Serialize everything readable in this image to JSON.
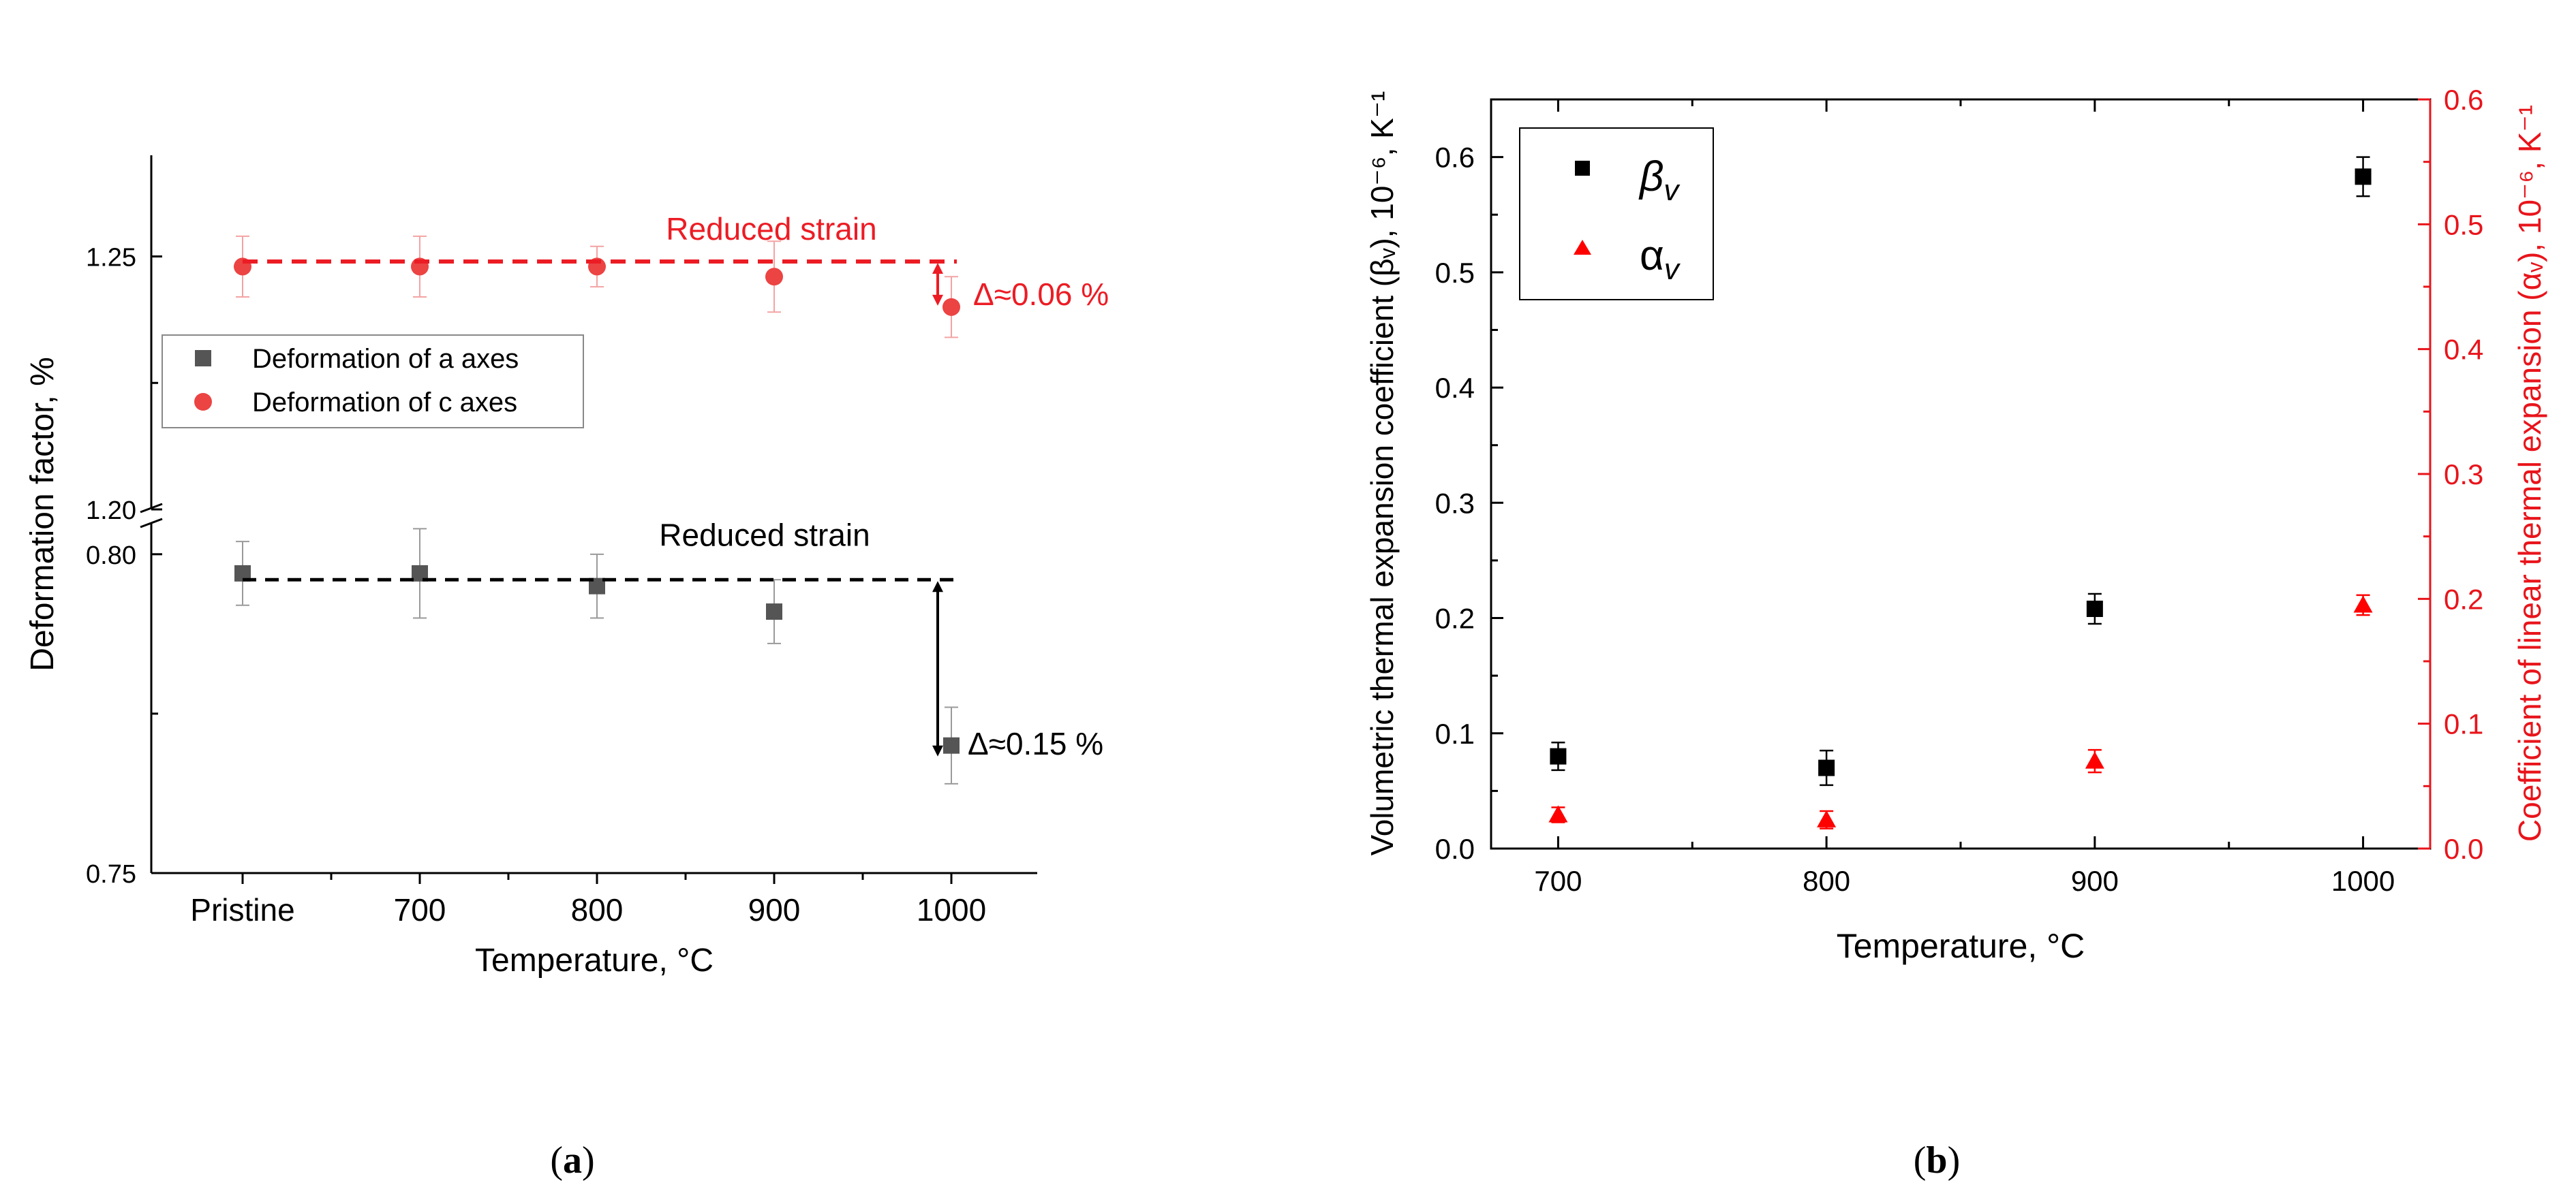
{
  "chart_data": [
    {
      "id": "a",
      "type": "scatter",
      "caption_letter": "a",
      "xlabel": "Temperature, °C",
      "ylabel": "Deformation factor, %",
      "categories": [
        "Pristine",
        "700",
        "800",
        "900",
        "1000"
      ],
      "ylim_lower": [
        0.75,
        0.805
      ],
      "ylim_upper": [
        1.2,
        1.27
      ],
      "yticks_lower": [
        "0.75",
        "0.80"
      ],
      "yticks_upper": [
        "1.20",
        "1.25"
      ],
      "series": [
        {
          "name": "Deformation of a axes",
          "color": "#555555",
          "marker": "square",
          "values": [
            0.797,
            0.797,
            0.795,
            0.791,
            0.77
          ],
          "errors": [
            0.005,
            0.007,
            0.005,
            0.005,
            0.006
          ]
        },
        {
          "name": "Deformation of c axes",
          "color": "#ec4343",
          "marker": "circle",
          "values": [
            1.248,
            1.248,
            1.248,
            1.246,
            1.24
          ],
          "errors": [
            0.006,
            0.006,
            0.004,
            0.007,
            0.006
          ]
        }
      ],
      "annotations": {
        "c_label": "Reduced strain",
        "c_ref": 1.249,
        "c_delta": "Δ≈0.06 %",
        "a_label": "Reduced strain",
        "a_ref": 0.796,
        "a_delta": "Δ≈0.15 %"
      },
      "legend_position": "top-left"
    },
    {
      "id": "b",
      "type": "scatter",
      "caption_letter": "b",
      "xlabel": "Temperature, °C",
      "ylabel_left": "Volumetric thermal expansion coefficient (βᵥ), 10⁻⁶, K⁻¹",
      "ylabel_right": "Coefficient of linear thermal expansion (αᵥ), 10⁻⁶, K⁻¹",
      "xlim": [
        675,
        1025
      ],
      "xticks": [
        700,
        800,
        900,
        1000
      ],
      "ylim_left": [
        0,
        0.65
      ],
      "yticks_left": [
        "0.0",
        "0.1",
        "0.2",
        "0.3",
        "0.4",
        "0.5",
        "0.6"
      ],
      "ylim_right": [
        0,
        0.6
      ],
      "yticks_right": [
        "0.0",
        "0.1",
        "0.2",
        "0.3",
        "0.4",
        "0.5",
        "0.6"
      ],
      "series": [
        {
          "name": "β",
          "subscript": "v",
          "color": "#000000",
          "marker": "square",
          "axis": "left",
          "x": [
            700,
            800,
            900,
            1000
          ],
          "values": [
            0.08,
            0.07,
            0.208,
            0.583
          ],
          "errors": [
            0.012,
            0.015,
            0.013,
            0.017
          ]
        },
        {
          "name": "α",
          "subscript": "v",
          "color": "#ff0000",
          "marker": "triangle",
          "axis": "right",
          "x": [
            700,
            800,
            900,
            1000
          ],
          "values": [
            0.027,
            0.023,
            0.07,
            0.195
          ],
          "errors": [
            0.006,
            0.007,
            0.009,
            0.008
          ]
        }
      ],
      "legend_position": "top-left"
    }
  ],
  "colors": {
    "red_axis": "#e8141b",
    "annotation_red": "#ec1c24"
  }
}
